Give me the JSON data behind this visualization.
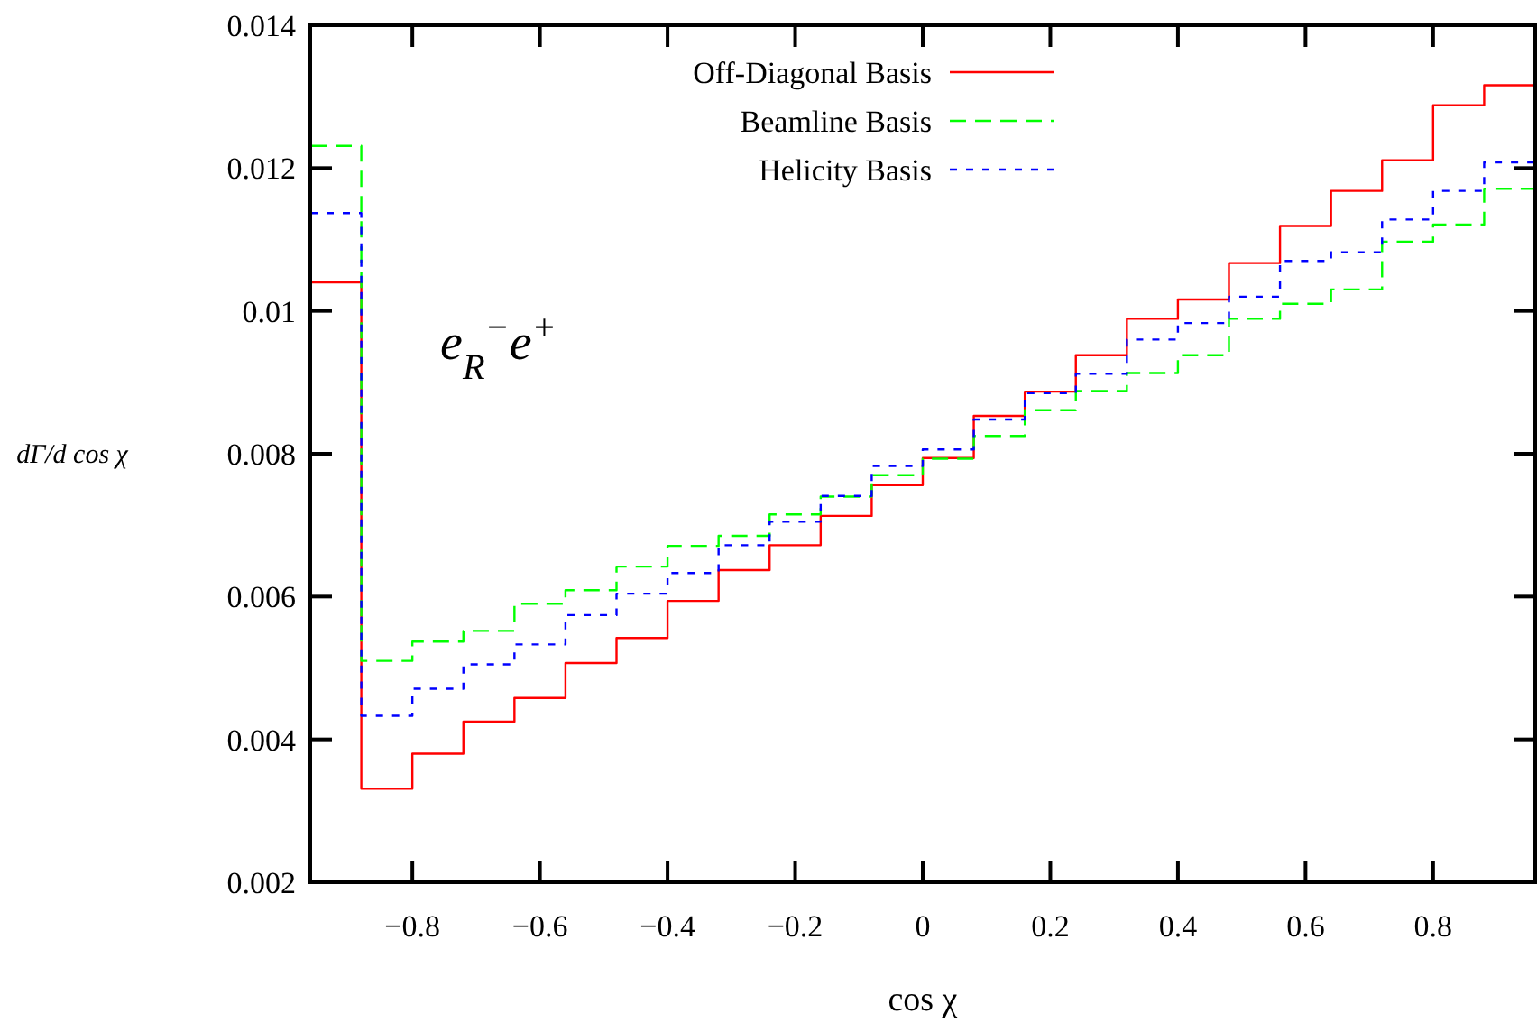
{
  "chart_data": {
    "type": "histogram",
    "xlabel": "cos χ",
    "ylabel": "dΓ/d cos χ",
    "bins": [
      -0.96,
      -0.88,
      -0.8,
      -0.72,
      -0.64,
      -0.56,
      -0.48,
      -0.4,
      -0.32,
      -0.24,
      -0.16,
      -0.08,
      0,
      0.08,
      0.16,
      0.24,
      0.32,
      0.4,
      0.48,
      0.56,
      0.64,
      0.72,
      0.8,
      0.88,
      0.96
    ],
    "xlim": [
      -0.96,
      0.96
    ],
    "xticks": [
      {
        "value": -0.8,
        "label": "−0.8"
      },
      {
        "value": -0.6,
        "label": "−0.6"
      },
      {
        "value": -0.4,
        "label": "−0.4"
      },
      {
        "value": -0.2,
        "label": "−0.2"
      },
      0,
      0.2,
      0.4,
      0.6,
      0.8
    ],
    "ylim": [
      0.002,
      0.014
    ],
    "yticks": [
      0.002,
      0.004,
      0.006,
      0.008,
      0.01,
      0.012,
      0.014
    ],
    "legend": "top",
    "annotations": [
      "e$_{R}$$^{−}$e$^{+}$"
    ],
    "series": [
      {
        "name": "Off-Diagonal Basis",
        "color": "#ff0000",
        "line_style": "solid",
        "values": [
          0.0104,
          0.00331,
          0.0038,
          0.00425,
          0.00458,
          0.00507,
          0.00542,
          0.00594,
          0.00637,
          0.00672,
          0.00713,
          0.00756,
          0.00794,
          0.00853,
          0.00887,
          0.00938,
          0.00989,
          0.01016,
          0.01067,
          0.01119,
          0.01168,
          0.01211,
          0.01288,
          0.01316
        ]
      },
      {
        "name": "Beamline Basis",
        "color": "#00ff00",
        "line_style": "dashed",
        "values": [
          0.01231,
          0.0051,
          0.00537,
          0.00552,
          0.0059,
          0.00609,
          0.00642,
          0.00671,
          0.00685,
          0.00715,
          0.0074,
          0.0077,
          0.00793,
          0.00825,
          0.00861,
          0.00888,
          0.00913,
          0.00938,
          0.00989,
          0.0101,
          0.0103,
          0.01097,
          0.01121,
          0.01171
        ]
      },
      {
        "name": "Helicity Basis",
        "color": "#0000ff",
        "line_style": "dotted",
        "values": [
          0.01137,
          0.00433,
          0.00471,
          0.00505,
          0.00533,
          0.00574,
          0.00604,
          0.00633,
          0.00672,
          0.00705,
          0.00741,
          0.00783,
          0.00806,
          0.00848,
          0.00885,
          0.00912,
          0.0096,
          0.00983,
          0.0102,
          0.0107,
          0.01082,
          0.01128,
          0.01168,
          0.01208
        ]
      }
    ]
  }
}
